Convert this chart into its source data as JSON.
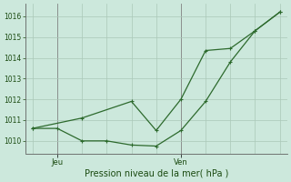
{
  "line1_x": [
    0,
    1,
    2,
    3,
    4,
    5,
    6,
    7,
    8,
    9,
    10
  ],
  "line1_y": [
    1010.6,
    1010.6,
    1010.0,
    1010.0,
    1009.8,
    1009.75,
    1010.5,
    1011.9,
    1013.8,
    1015.3,
    1016.2
  ],
  "line2_x": [
    0,
    2,
    4,
    5,
    6,
    7,
    8,
    9,
    10
  ],
  "line2_y": [
    1010.6,
    1011.1,
    1011.9,
    1010.5,
    1012.0,
    1014.35,
    1014.45,
    1015.3,
    1016.2
  ],
  "line_color": "#2d6a2d",
  "bg_color": "#cce8dc",
  "grid_color": "#aac8b8",
  "xlabel": "Pression niveau de la mer( hPa )",
  "ylim": [
    1009.4,
    1016.6
  ],
  "yticks": [
    1010,
    1011,
    1012,
    1013,
    1014,
    1015,
    1016
  ],
  "xlim": [
    -0.3,
    10.3
  ],
  "jeu_x": 1.0,
  "ven_x": 6.0,
  "xlabel_color": "#1a4a10",
  "tick_label_color": "#1a4a10",
  "marker_size": 2.5,
  "linewidth": 0.9,
  "ytick_fontsize": 5.5,
  "xtick_fontsize": 6.0,
  "xlabel_fontsize": 7.0,
  "grid_linewidth": 0.5,
  "num_xgrid": 10
}
